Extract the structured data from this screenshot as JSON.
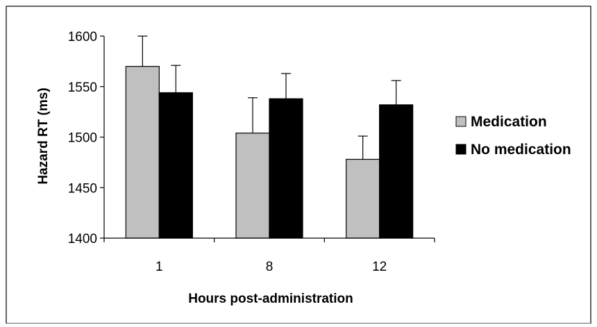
{
  "chart_data": {
    "type": "bar",
    "title": "",
    "xlabel": "Hours post-administration",
    "ylabel": "Hazard RT (ms)",
    "categories": [
      "1",
      "8",
      "12"
    ],
    "ylim": [
      1400,
      1600
    ],
    "yticks": [
      1400,
      1450,
      1500,
      1550,
      1600
    ],
    "grid": false,
    "legend_position": "right",
    "error_bars": true,
    "series": [
      {
        "name": "Medication",
        "color": "#c0c0c0",
        "values": [
          1570,
          1504,
          1478
        ],
        "error_upper": [
          1600,
          1539,
          1501
        ]
      },
      {
        "name": "No medication",
        "color": "#000000",
        "values": [
          1544,
          1538,
          1532
        ],
        "error_upper": [
          1571,
          1563,
          1556
        ]
      }
    ]
  }
}
